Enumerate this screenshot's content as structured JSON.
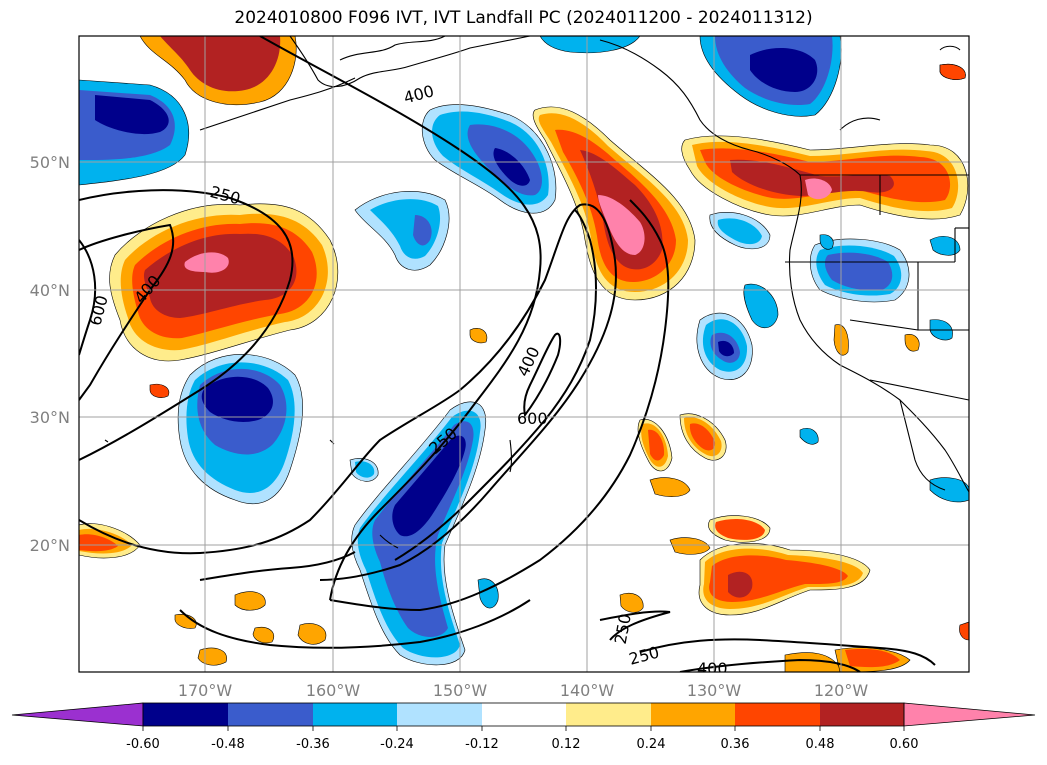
{
  "title": "2024010800 F096 IVT, IVT Landfall PC (2024011200 - 2024011312)",
  "map": {
    "lat_labels": [
      "50°N",
      "40°N",
      "30°N",
      "20°N"
    ],
    "lon_labels": [
      "170°W",
      "160°W",
      "150°W",
      "140°W",
      "130°W",
      "120°W"
    ],
    "contour_labels": [
      "400",
      "250",
      "400",
      "600",
      "400",
      "600",
      "250",
      "250",
      "250",
      "400"
    ]
  },
  "colorbar": {
    "tick_labels": [
      "-0.60",
      "-0.48",
      "-0.36",
      "-0.24",
      "-0.12",
      "0.12",
      "0.24",
      "0.36",
      "0.48",
      "0.60"
    ],
    "colors": {
      "min_extend": "#9b30d0",
      "n060": "#00008b",
      "n048": "#3a5ccc",
      "n036": "#00b2ee",
      "n024": "#b0e2ff",
      "neutral": "#ffffff",
      "p012": "#ffec8b",
      "p024": "#ffa500",
      "p036": "#ff4500",
      "p048": "#b22222",
      "max_extend": "#ff82ab"
    }
  }
}
